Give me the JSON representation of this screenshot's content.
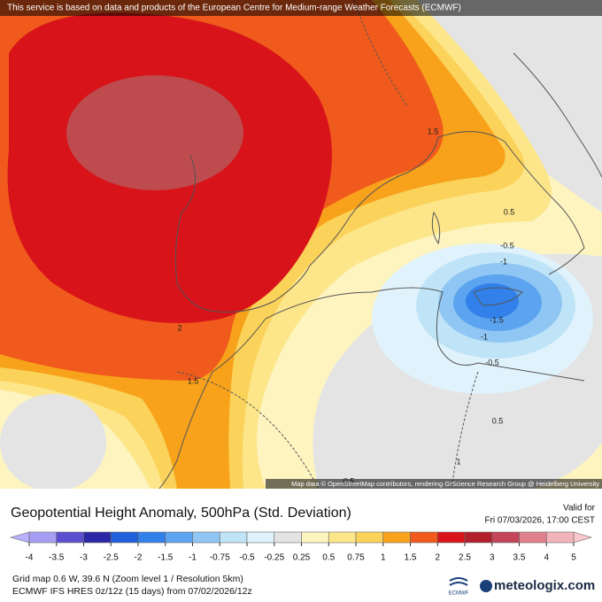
{
  "banner": "This service is based on data and products of the European Centre for Medium-range Weather Forecasts (ECMWF)",
  "attribution": "Map data © OpenStreetMap contributors, rendering GIScience Research Group @ Heidelberg University",
  "map": {
    "contour_labels": [
      "1.5",
      "2",
      "1.5",
      "0.5",
      "-0.5",
      "-1",
      "-1.5",
      "-1",
      "-0.5",
      "0.5",
      "1",
      "0.5"
    ]
  },
  "title": "Geopotential Height Anomaly, 500hPa (Std. Deviation)",
  "valid_label": "Valid for",
  "valid_time": "Fri 07/03/2026, 17:00 CEST",
  "colorbar": {
    "ticks": [
      -4,
      -3.5,
      -3,
      -2.5,
      -2,
      -1.5,
      -1,
      -0.75,
      -0.5,
      -0.25,
      0.25,
      0.5,
      0.75,
      1,
      1.5,
      2,
      2.5,
      3,
      3.5,
      4,
      5
    ],
    "under_color": "#b8b0fa",
    "over_color": "#f8c8cc",
    "colors": [
      "#a69ef2",
      "#5b4fd0",
      "#2a28a6",
      "#1f5fd8",
      "#3280ea",
      "#5ca4f0",
      "#8fc6f3",
      "#bfe4f7",
      "#e0f2fb",
      "#e4e4e4",
      "#fdf4c0",
      "#fde68a",
      "#fbd25a",
      "#f7a21a",
      "#f05a1c",
      "#d8141a",
      "#b2202c",
      "#c4445a",
      "#e0808c",
      "#f3b3ba"
    ]
  },
  "footer": {
    "line1": "Grid map 0.6 W, 39.6 N (Zoom level 1 / Resolution 5km)",
    "line2": "ECMWF IFS HRES 0z/12z (15 days) from 07/02/2026/12z",
    "ecmwf_logo": "ECMWF",
    "brand": "meteologix.com"
  }
}
